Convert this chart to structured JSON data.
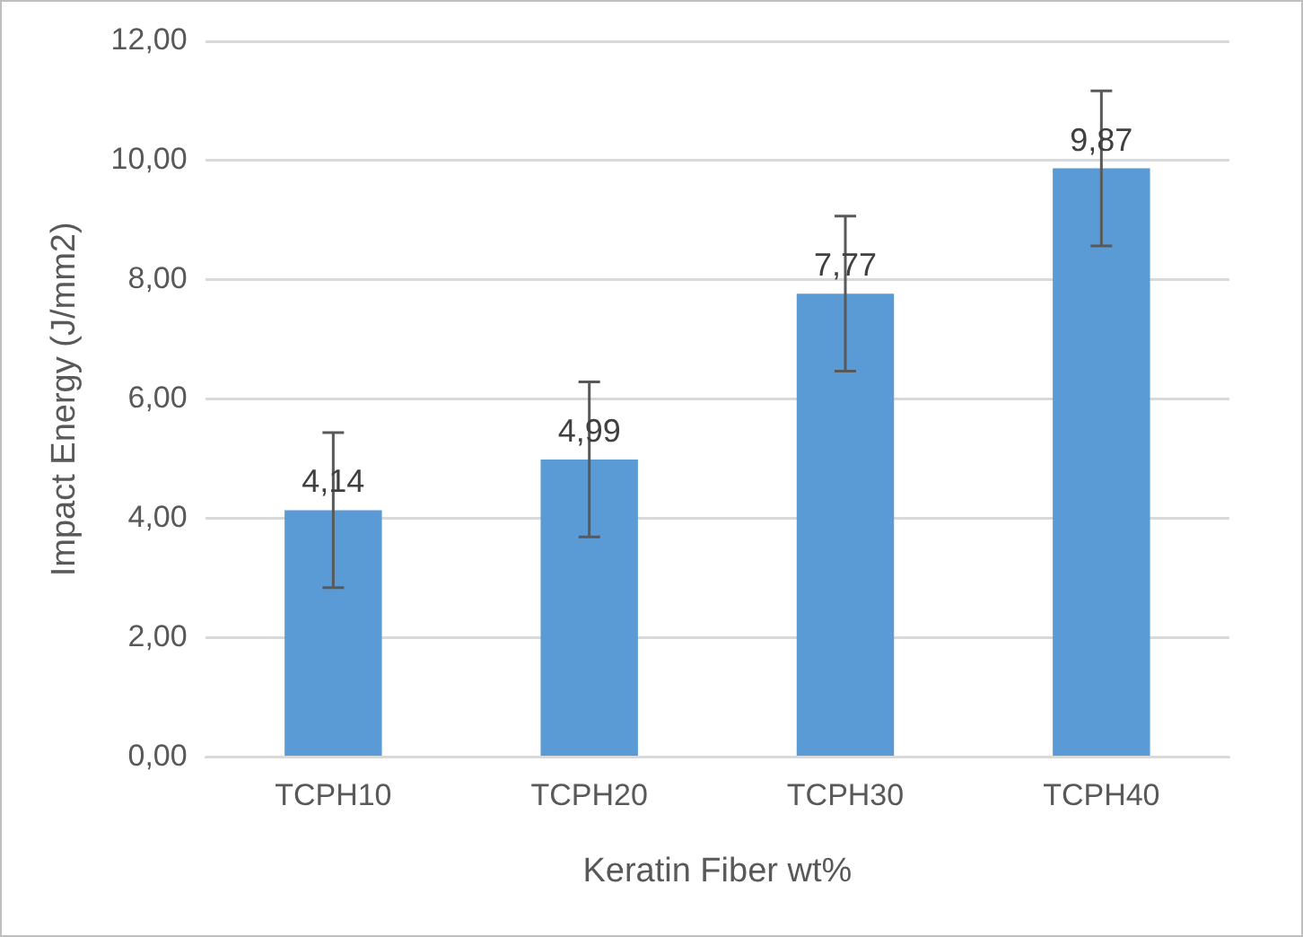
{
  "chart_data": {
    "type": "bar",
    "xlabel": "Keratin Fiber wt%",
    "ylabel": "Impact Energy (J/mm2)",
    "categories": [
      "TCPH10",
      "TCPH20",
      "TCPH30",
      "TCPH40"
    ],
    "values": [
      4.14,
      4.99,
      7.77,
      9.87
    ],
    "color": "#5b9bd5",
    "errors": [
      1.3,
      1.3,
      1.3,
      1.3
    ],
    "value_labels": [
      "4,14",
      "4,99",
      "7,77",
      "9,87"
    ],
    "ylim": [
      0,
      12
    ],
    "yticks": [
      {
        "value": 0,
        "label": "0,00"
      },
      {
        "value": 2,
        "label": "2,00"
      },
      {
        "value": 4,
        "label": "4,00"
      },
      {
        "value": 6,
        "label": "6,00"
      },
      {
        "value": 8,
        "label": "8,00"
      },
      {
        "value": 10,
        "label": "10,00"
      },
      {
        "value": 12,
        "label": "12,00"
      }
    ],
    "grid": "y",
    "legend": false
  }
}
